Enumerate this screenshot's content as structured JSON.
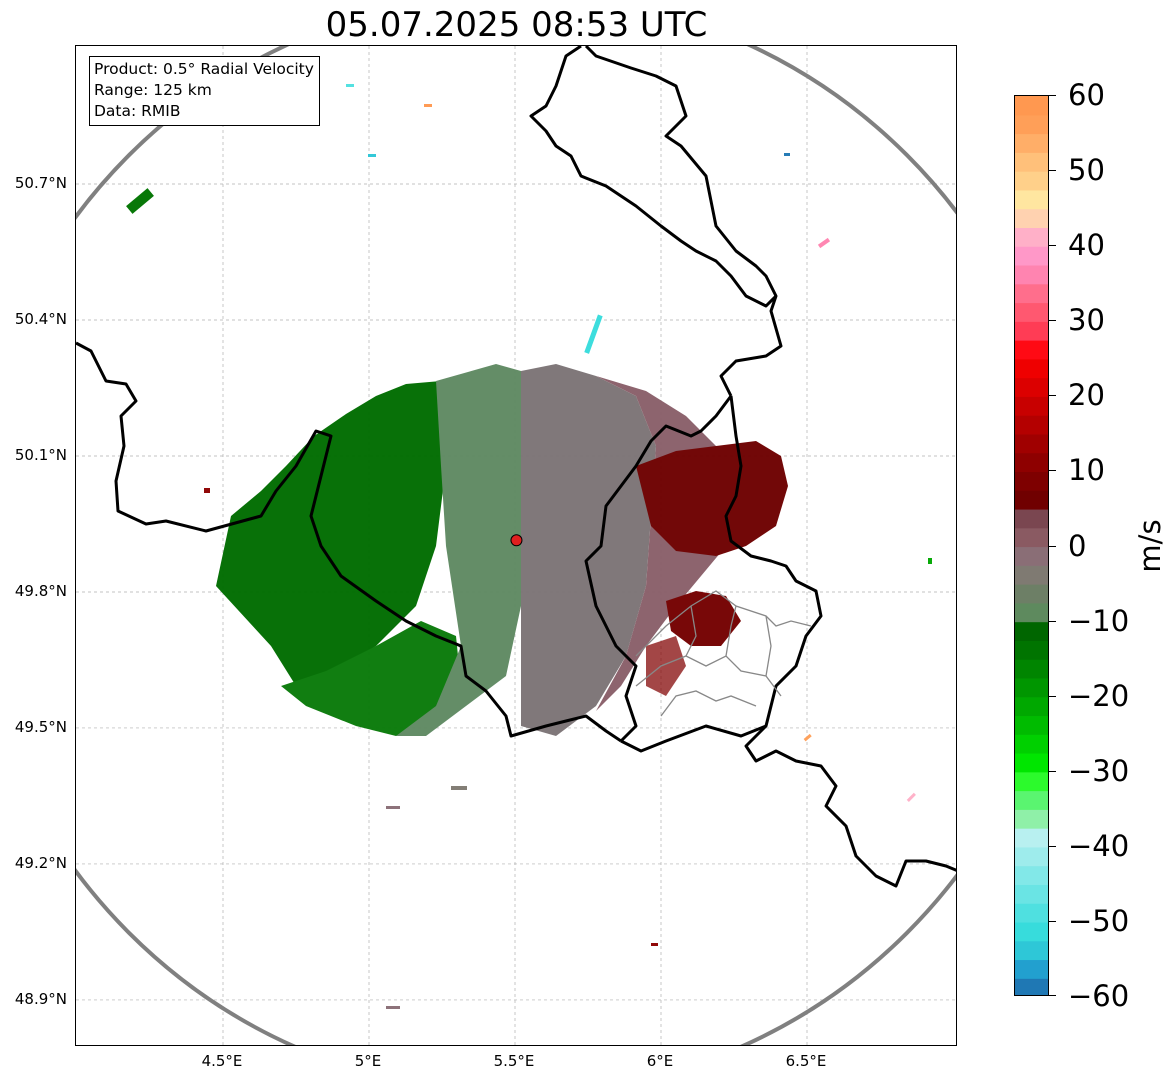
{
  "title": "05.07.2025 08:53 UTC",
  "info": {
    "product": "Product: 0.5° Radial Velocity",
    "range": "Range: 125 km",
    "source": "Data: RMIB"
  },
  "map": {
    "lon_range": [
      4.0,
      7.0
    ],
    "lat_range": [
      48.8,
      51.0
    ],
    "lat_ticks": [
      {
        "value": 50.7,
        "label": "50.7°N"
      },
      {
        "value": 50.4,
        "label": "50.4°N"
      },
      {
        "value": 50.1,
        "label": "50.1°N"
      },
      {
        "value": 49.8,
        "label": "49.8°N"
      },
      {
        "value": 49.5,
        "label": "49.5°N"
      },
      {
        "value": 49.2,
        "label": "49.2°N"
      },
      {
        "value": 48.9,
        "label": "48.9°N"
      }
    ],
    "lon_ticks": [
      {
        "value": 4.5,
        "label": "4.5°E"
      },
      {
        "value": 5.0,
        "label": "5°E"
      },
      {
        "value": 5.5,
        "label": "5.5°E"
      },
      {
        "value": 6.0,
        "label": "6°E"
      },
      {
        "value": 6.5,
        "label": "6.5°E"
      }
    ],
    "radar_site": {
      "lon": 5.505,
      "lat": 49.914
    },
    "range_circle_color": "#808080",
    "grid": true
  },
  "colorbar": {
    "unit": "m/s",
    "min": -60,
    "max": 60,
    "ticks": [
      {
        "value": 60,
        "label": "60"
      },
      {
        "value": 50,
        "label": "50"
      },
      {
        "value": 40,
        "label": "40"
      },
      {
        "value": 30,
        "label": "30"
      },
      {
        "value": 20,
        "label": "20"
      },
      {
        "value": 10,
        "label": "10"
      },
      {
        "value": 0,
        "label": "0"
      },
      {
        "value": -10,
        "label": "−10"
      },
      {
        "value": -20,
        "label": "−20"
      },
      {
        "value": -30,
        "label": "−30"
      },
      {
        "value": -40,
        "label": "−40"
      },
      {
        "value": -50,
        "label": "−50"
      },
      {
        "value": -60,
        "label": "−60"
      }
    ],
    "colors_bottom_to_top": [
      "#1f78b4",
      "#22a0cf",
      "#2ec7d7",
      "#37dcdc",
      "#4fe0e0",
      "#6ae4e4",
      "#82e8e8",
      "#9eecec",
      "#b8f0f0",
      "#8ff0a8",
      "#5af570",
      "#2cfa2c",
      "#00e600",
      "#00d000",
      "#00bb00",
      "#00a800",
      "#009600",
      "#008500",
      "#007400",
      "#006600",
      "#5e8a5e",
      "#6d7f66",
      "#7f7a72",
      "#8a6e76",
      "#8a5a62",
      "#7a4650",
      "#700000",
      "#7e0000",
      "#8e0000",
      "#a00000",
      "#b40000",
      "#c80000",
      "#dc0000",
      "#ef0000",
      "#ff0a14",
      "#ff3c55",
      "#ff5870",
      "#ff6e8c",
      "#ff84b0",
      "#ff98c8",
      "#ffb0c8",
      "#ffd2b0",
      "#ffe6a0",
      "#ffd08a",
      "#ffc07a",
      "#ffae68",
      "#ff9f58",
      "#ff9850"
    ]
  }
}
